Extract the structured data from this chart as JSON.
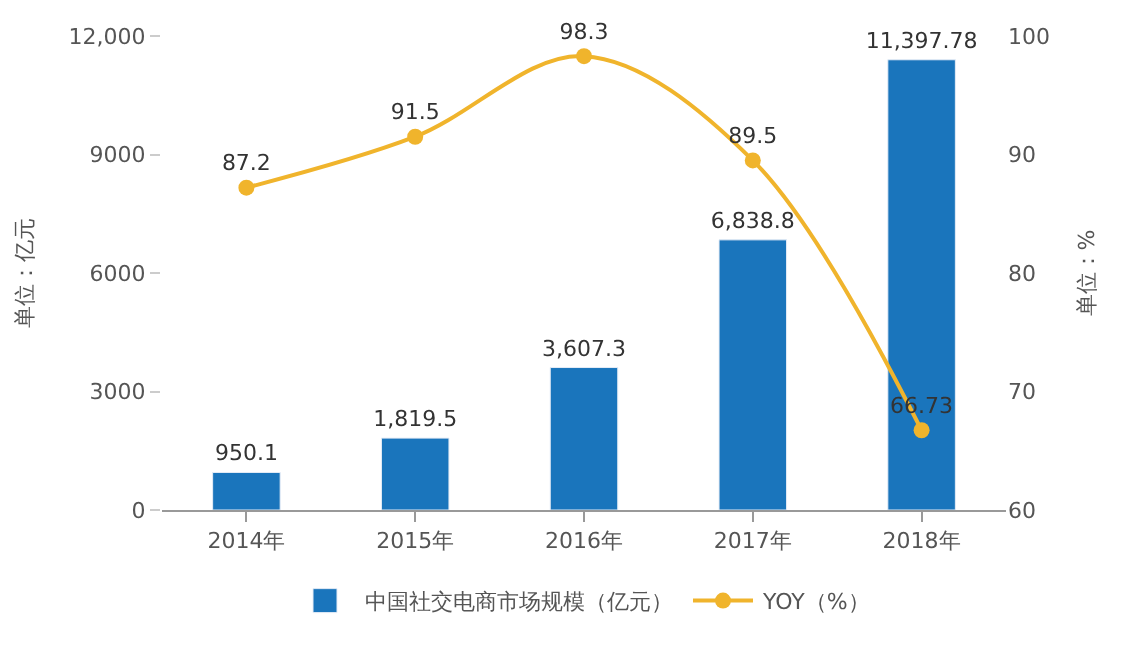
{
  "chart_data": {
    "type": "bar",
    "categories": [
      "2014年",
      "2015年",
      "2016年",
      "2017年",
      "2018年"
    ],
    "series": [
      {
        "name": "中国社交电商市场规模（亿元）",
        "color": "#1a75bc",
        "values": [
          950.1,
          1819.5,
          3607.3,
          6838.8,
          11397.78
        ],
        "value_labels": [
          "950.1",
          "1,819.5",
          "3,607.3",
          "6,838.8",
          "11,397.78"
        ]
      },
      {
        "name": "YOY（%）",
        "type": "line",
        "axis": "y2",
        "color": "#f0b42c",
        "values": [
          87.2,
          91.5,
          98.3,
          89.5,
          66.73
        ],
        "value_labels": [
          "87.2",
          "91.5",
          "98.3",
          "89.5",
          "66.73"
        ],
        "marker": "circle",
        "line_style": "solid"
      }
    ],
    "ylabel": "单位：亿元",
    "y2label": "单位：%",
    "ylim": [
      0,
      12000
    ],
    "yticks": [
      0,
      3000,
      6000,
      9000,
      {
        "value": 12000,
        "label": "12,000"
      }
    ],
    "y2lim": [
      60,
      100
    ],
    "y2ticks": [
      60,
      70,
      80,
      90,
      100
    ],
    "legend": "bottom"
  }
}
